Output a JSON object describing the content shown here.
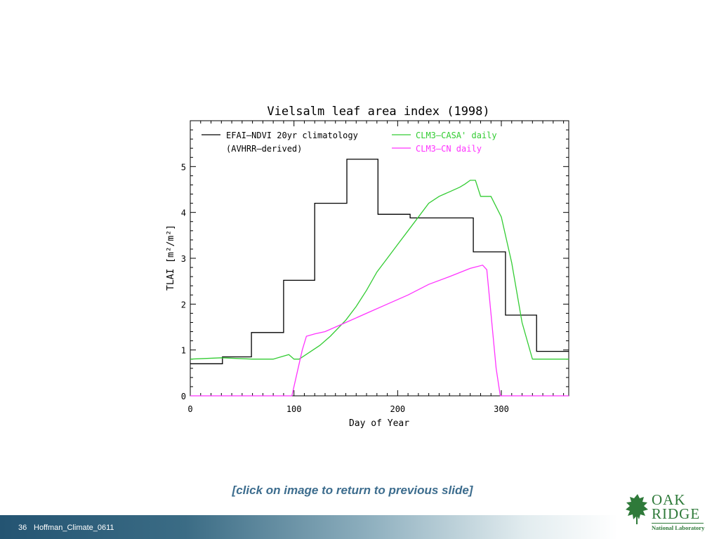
{
  "chart_data": {
    "type": "line",
    "title": "Vielsalm leaf area index (1998)",
    "xlabel": "Day of Year",
    "ylabel": "TLAI [m²/m²]",
    "xlim": [
      0,
      365
    ],
    "ylim": [
      0,
      6
    ],
    "xticks": [
      0,
      100,
      200,
      300
    ],
    "yticks": [
      0,
      1,
      2,
      3,
      4,
      5
    ],
    "grid": false,
    "legend_placement": "top",
    "series": [
      {
        "name": "EFAI–NDVI 20yr climatology",
        "name_line2": "(AVHRR–derived)",
        "color": "#000000",
        "step": true,
        "x": [
          0,
          31,
          31,
          59,
          59,
          90,
          90,
          120,
          120,
          151,
          151,
          181,
          181,
          212,
          212,
          273,
          273,
          304,
          304,
          334,
          334,
          365
        ],
        "y": [
          0.7,
          0.7,
          0.85,
          0.85,
          1.38,
          1.38,
          2.52,
          2.52,
          4.2,
          4.2,
          5.16,
          5.16,
          3.96,
          3.96,
          3.88,
          3.88,
          3.14,
          3.14,
          1.76,
          1.76,
          0.97,
          0.97
        ]
      },
      {
        "name": "CLM3–CASA' daily",
        "color": "#33cc33",
        "step": false,
        "x": [
          0,
          30,
          60,
          80,
          95,
          100,
          105,
          115,
          125,
          135,
          150,
          160,
          170,
          180,
          190,
          200,
          210,
          220,
          230,
          240,
          250,
          260,
          265,
          270,
          275,
          280,
          285,
          290,
          300,
          310,
          320,
          330,
          365
        ],
        "y": [
          0.8,
          0.83,
          0.8,
          0.8,
          0.9,
          0.8,
          0.8,
          0.95,
          1.1,
          1.3,
          1.65,
          1.95,
          2.3,
          2.7,
          3.0,
          3.3,
          3.6,
          3.9,
          4.2,
          4.35,
          4.45,
          4.55,
          4.62,
          4.7,
          4.7,
          4.35,
          4.35,
          4.35,
          3.9,
          2.9,
          1.6,
          0.8,
          0.8
        ]
      },
      {
        "name": "CLM3–CN daily",
        "color": "#ff33ff",
        "step": false,
        "x": [
          0,
          98,
          103,
          108,
          112,
          120,
          130,
          150,
          170,
          190,
          210,
          230,
          250,
          270,
          282,
          286,
          290,
          295,
          299,
          365
        ],
        "y": [
          0,
          0,
          0.5,
          1.0,
          1.3,
          1.35,
          1.4,
          1.6,
          1.8,
          2.0,
          2.2,
          2.43,
          2.6,
          2.78,
          2.85,
          2.75,
          1.8,
          0.6,
          0,
          0
        ]
      }
    ]
  },
  "footer": {
    "return_link": "[click on image to return to previous slide]",
    "slide_number": "36",
    "slide_label": "Hoffman_Climate_0611"
  },
  "logo": {
    "line1": "OAK",
    "line2": "RIDGE",
    "line3": "National Laboratory"
  },
  "colors": {
    "footer_gradient_start": "#245472",
    "logo_green": "#2f7a3a",
    "link_color": "#3d6d8e"
  }
}
